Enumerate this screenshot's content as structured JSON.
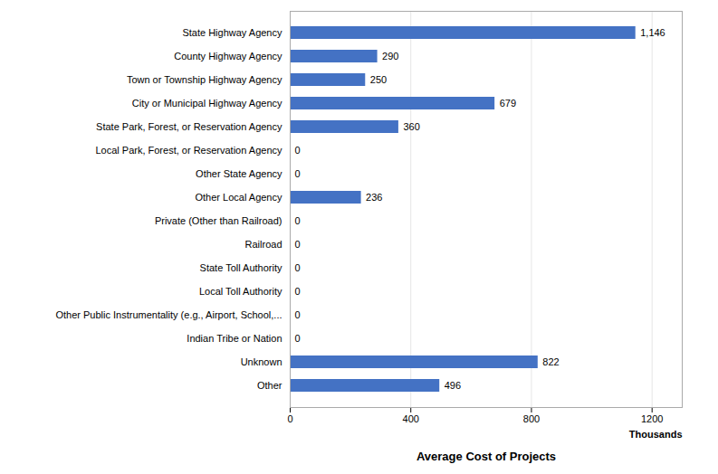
{
  "chart_data": {
    "type": "bar",
    "orientation": "horizontal",
    "categories": [
      "Other",
      "Unknown",
      "Indian Tribe or Nation",
      "Other Public Instrumentality (e.g., Airport, School,...",
      "Local Toll Authority",
      "State Toll Authority",
      "Railroad",
      "Private (Other than Railroad)",
      "Other Local Agency",
      "Other State Agency",
      "Local Park, Forest, or Reservation Agency",
      "State Park, Forest, or Reservation Agency",
      "City or Municipal Highway Agency",
      "Town or Township Highway Agency",
      "County Highway Agency",
      "State Highway Agency"
    ],
    "values": [
      496,
      822,
      0,
      0,
      0,
      0,
      0,
      0,
      236,
      0,
      0,
      360,
      679,
      250,
      290,
      1146
    ],
    "value_labels": [
      "496",
      "822",
      "0",
      "0",
      "0",
      "0",
      "0",
      "0",
      "236",
      "0",
      "0",
      "360",
      "679",
      "250",
      "290",
      "1,146"
    ],
    "data_labels": true,
    "color": "#4472C4",
    "x_label": "Average Cost of Projects",
    "annotations": [
      "Thousands"
    ],
    "xlim": [
      0,
      1300
    ],
    "xticks": [
      0,
      400,
      800,
      1200
    ],
    "grid": true
  }
}
